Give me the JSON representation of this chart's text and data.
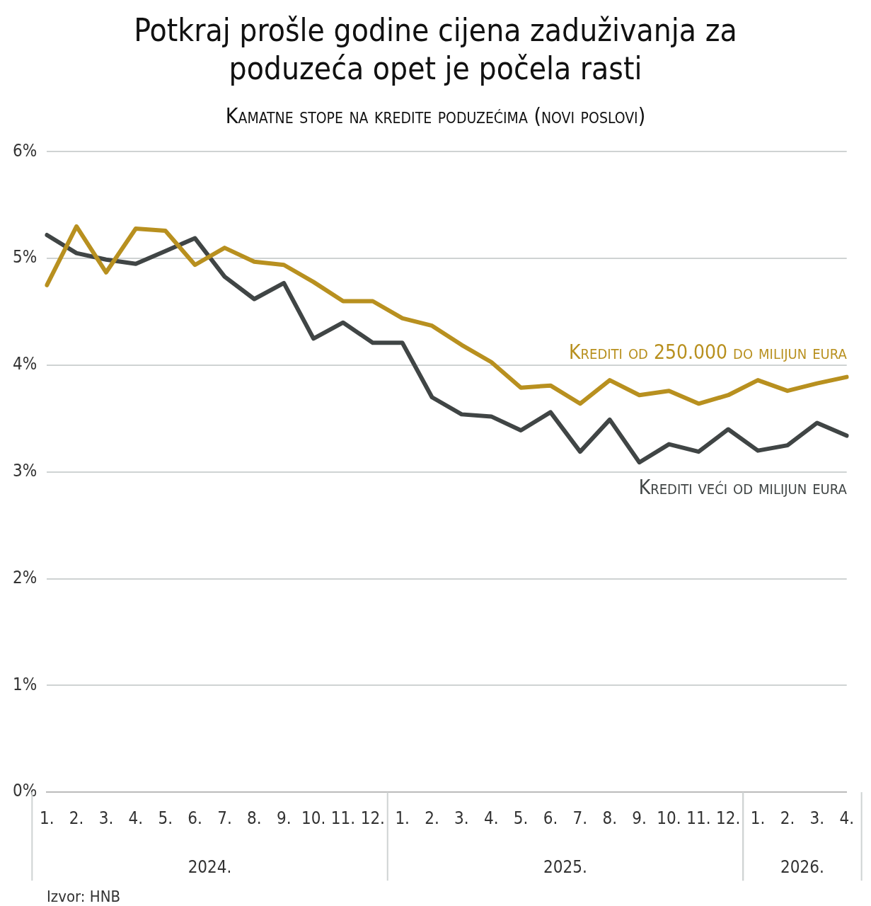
{
  "chart_data": {
    "type": "line",
    "title": "Potkraj prošle godine cijena zaduživanja za poduzeća opet je počela rasti",
    "subtitle": "Kamatne stope na kredite poduzećima (novi poslovi)",
    "categories": [
      "1.",
      "2.",
      "3.",
      "4.",
      "5.",
      "6.",
      "7.",
      "8.",
      "9.",
      "10.",
      "11.",
      "12.",
      "1.",
      "2.",
      "3.",
      "4.",
      "5.",
      "6.",
      "7.",
      "8.",
      "9.",
      "10.",
      "11.",
      "12.",
      "1.",
      "2.",
      "3.",
      "4."
    ],
    "series": [
      {
        "name": "Krediti od 250.000 do milijun eura",
        "color": "#b8901f",
        "values": [
          4.75,
          5.3,
          4.87,
          5.28,
          5.26,
          4.94,
          5.1,
          4.97,
          4.94,
          4.78,
          4.6,
          4.6,
          4.44,
          4.37,
          4.19,
          4.03,
          3.79,
          3.81,
          3.64,
          3.86,
          3.72,
          3.76,
          3.64,
          3.72,
          3.86,
          3.76,
          3.83,
          3.89
        ]
      },
      {
        "name": "Krediti veći od milijun eura",
        "color": "#404545",
        "values": [
          5.22,
          5.05,
          4.99,
          4.95,
          5.07,
          5.19,
          4.83,
          4.62,
          4.77,
          4.25,
          4.4,
          4.21,
          4.21,
          3.7,
          3.54,
          3.52,
          3.39,
          3.56,
          3.19,
          3.49,
          3.09,
          3.26,
          3.19,
          3.4,
          3.2,
          3.25,
          3.46,
          3.34
        ]
      }
    ],
    "ylim": [
      0,
      6
    ],
    "yticks": [
      {
        "value": 0,
        "label": "0%"
      },
      {
        "value": 1,
        "label": "1%"
      },
      {
        "value": 2,
        "label": "2%"
      },
      {
        "value": 3,
        "label": "3%"
      },
      {
        "value": 4,
        "label": "4%"
      },
      {
        "value": 5,
        "label": "5%"
      },
      {
        "value": 6,
        "label": "6%"
      }
    ],
    "grid": "y",
    "legend": false,
    "marker": "none",
    "line_style": "solid",
    "annotations": [
      "2024.",
      "2025.",
      "2026.",
      "Izvor: HNB"
    ]
  }
}
